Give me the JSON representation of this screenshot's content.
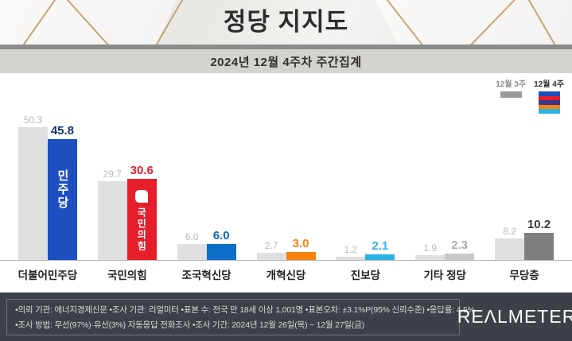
{
  "header": {
    "title": "정당 지지도",
    "subtitle": "2024년 12월 4주차 주간집계"
  },
  "legend": {
    "week3_label": "12월 3주",
    "week4_label": "12월 4주",
    "week3_color": "#9a9a9a",
    "week4_stripes": [
      "#1e4fc1",
      "#e61e2b",
      "#3c3688",
      "#f5820d",
      "#29b4e4"
    ]
  },
  "chart_data": {
    "type": "bar",
    "title": "정당 지지도",
    "subtitle": "2024년 12월 4주차 주간집계",
    "categories": [
      "더불어민주당",
      "국민의힘",
      "조국혁신당",
      "개혁신당",
      "진보당",
      "기타 정당",
      "무당층"
    ],
    "series": [
      {
        "name": "12월 3주",
        "values": [
          50.3,
          29.7,
          6.0,
          2.7,
          1.2,
          1.9,
          8.2
        ]
      },
      {
        "name": "12월 4주",
        "values": [
          45.8,
          30.6,
          6.0,
          3.0,
          2.1,
          2.3,
          10.2
        ]
      }
    ],
    "week3_bar_color": "#dfdfdf",
    "week3_value_color": "#b9b9b9",
    "week4_bar_colors": [
      "#1e4fc1",
      "#e61e2b",
      "#0d6dc7",
      "#f5820d",
      "#29b4e4",
      "#c9c9c9",
      "#7e7e7e"
    ],
    "week4_value_colors": [
      "#16307a",
      "#e61e2b",
      "#0d62c0",
      "#f5820d",
      "#29b4e4",
      "#ababab",
      "#3a3a3a"
    ],
    "logos": [
      {
        "text": "민주당",
        "symbol": false
      },
      {
        "text": "국민의힘",
        "symbol": true
      },
      null,
      null,
      null,
      null,
      null
    ],
    "ylim": [
      0,
      55
    ],
    "grid": false,
    "legend_position": "top-right"
  },
  "footer": {
    "line1": "•의뢰 기관: 에너지경제신문  •조사 기관: 리얼미터 •표본 수: 전국 만 18세 이상 1,001명 •표본오차: ±3.1%P(95% 신뢰수준) •응답률: 4.6%",
    "line2": "•조사 방법: 무선(97%)·유선(3%) 자동응답 전화조사 •조사 기간: 2024년 12월 26일(목) ~ 12월 27일(금)",
    "logo": "REΛLMETER"
  }
}
